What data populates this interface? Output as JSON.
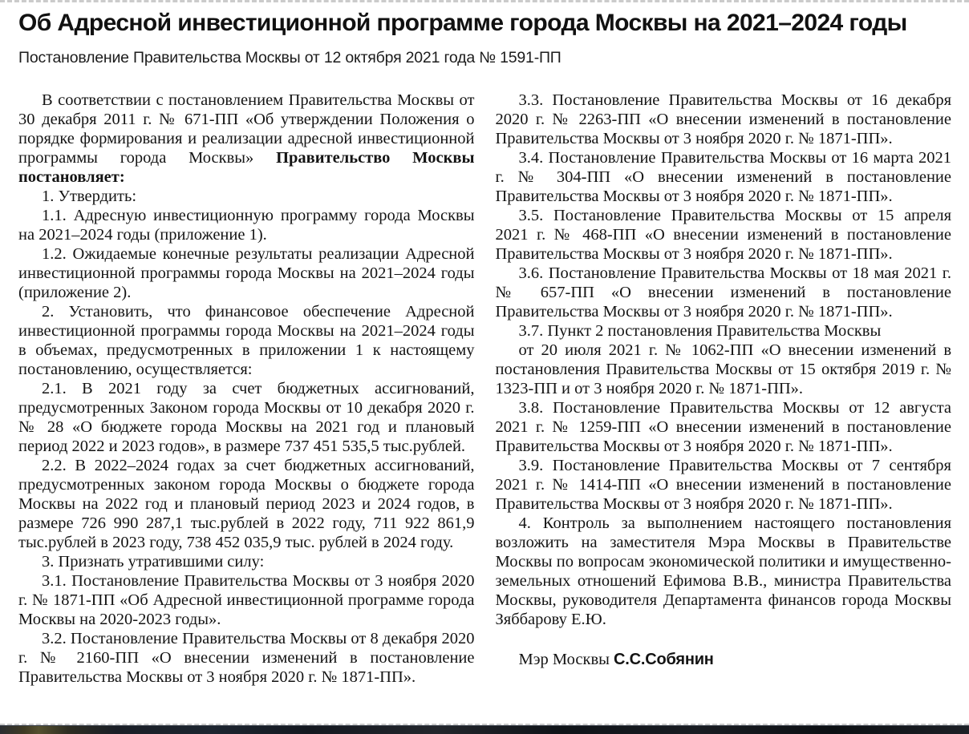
{
  "page": {
    "title": "Об Адресной инвестиционной программе города Москвы на 2021–2024 годы",
    "subtitle": "Постановление Правительства Москвы от 12 октября 2021 года № 1591-ПП"
  },
  "colors": {
    "text": "#141414",
    "title": "#111111",
    "border_dashed": "#cbcbcb",
    "strip_dark": "#14161a",
    "strip_olive": "#55502f",
    "strip_blue": "#1d2530"
  },
  "document": {
    "left_column": [
      {
        "segments": [
          {
            "text": "В соответствии с постановлением Правительства Москвы от 30 декабря 2011 г. № 671-ПП «Об утверждении Положения о порядке формирования и реализации адресной инвестиционной программы города Москвы» "
          },
          {
            "text": "Правительство Москвы постановляет:",
            "bold": true
          }
        ]
      },
      {
        "segments": [
          {
            "text": "1. Утвердить:"
          }
        ]
      },
      {
        "segments": [
          {
            "text": "1.1. Адресную инвестиционную программу города Москвы на 2021–2024 годы (приложение 1)."
          }
        ]
      },
      {
        "segments": [
          {
            "text": "1.2. Ожидаемые конечные результаты реализации Адресной инвестиционной программы города Москвы на 2021–2024 годы (приложение 2)."
          }
        ]
      },
      {
        "segments": [
          {
            "text": "2. Установить, что финансовое обеспечение Адресной инвестиционной программы города Москвы на 2021–2024 годы в объемах, предусмотренных в приложении 1 к настоящему постановлению, осуществляется:"
          }
        ]
      },
      {
        "segments": [
          {
            "text": "2.1. В 2021 году за счет бюджетных ассигнований, предусмотренных Законом города Москвы от 10 декабря 2020 г. № 28 «О бюджете города Москвы на 2021 год и плановый период 2022 и 2023 годов», в размере 737 451 535,5 тыс.рублей."
          }
        ]
      },
      {
        "segments": [
          {
            "text": "2.2. В 2022–2024 годах за счет бюджетных ассигнований, предусмотренных законом города Москвы о бюджете города Москвы на 2022 год и плановый период 2023 и 2024 годов, в размере 726 990 287,1 тыс.рублей в 2022 году, 711 922 861,9 тыс.рублей в 2023 году, 738 452 035,9 тыс. рублей в 2024 году."
          }
        ]
      },
      {
        "segments": [
          {
            "text": "3. Признать утратившими силу:"
          }
        ]
      },
      {
        "segments": [
          {
            "text": "3.1. Постановление Правительства Москвы от 3 ноября 2020 г. № 1871-ПП «Об Адресной инвестиционной программе города Москвы на 2020-2023 годы»."
          }
        ]
      },
      {
        "segments": [
          {
            "text": "3.2. Постановление Правительства Москвы от 8 декабря 2020 г. № 2160-ПП «О внесении изменений в постановление Правительства Москвы от 3 ноября 2020 г. № 1871-ПП»."
          }
        ]
      }
    ],
    "right_column": [
      {
        "segments": [
          {
            "text": "3.3. Постановление Правительства Москвы от 16 декабря 2020 г. № 2263-ПП «О внесении изменений в постановление Правительства Москвы от 3 ноября 2020 г. № 1871-ПП»."
          }
        ]
      },
      {
        "segments": [
          {
            "text": "3.4. Постановление Правительства Москвы от 16 марта 2021 г. № 304-ПП «О внесении изменений в постановление Правительства Москвы от 3 ноября 2020 г. № 1871-ПП»."
          }
        ]
      },
      {
        "segments": [
          {
            "text": "3.5. Постановление Правительства Москвы от 15 апреля 2021 г. № 468-ПП «О внесении изменений в постановление Правительства Москвы от 3 ноября 2020 г. № 1871-ПП»."
          }
        ]
      },
      {
        "segments": [
          {
            "text": "3.6. Постановление Правительства Москвы от 18 мая 2021 г. № 657-ПП «О внесении изменений в постановление Правительства Москвы от 3 ноября 2020 г. № 1871-ПП»."
          }
        ]
      },
      {
        "justify": false,
        "segments": [
          {
            "text": "3.7. Пункт 2 постановления Правительства Москвы"
          }
        ]
      },
      {
        "segments": [
          {
            "text": "от 20 июля 2021 г. № 1062-ПП «О внесении изменений в постановления Правительства Москвы от 15 октября 2019 г. № 1323-ПП и от 3 ноября 2020 г. № 1871-ПП»."
          }
        ]
      },
      {
        "segments": [
          {
            "text": "3.8. Постановление Правительства Москвы от 12 августа 2021 г. № 1259-ПП «О внесении изменений в постановление Правительства Москвы от 3 ноября 2020 г. № 1871-ПП»."
          }
        ]
      },
      {
        "segments": [
          {
            "text": "3.9. Постановление Правительства Москвы от 7 сентября 2021 г. № 1414-ПП «О внесении изменений в постановление Правительства Москвы от 3 ноября 2020 г. № 1871-ПП»."
          }
        ]
      },
      {
        "segments": [
          {
            "text": "4. Контроль за выполнением настоящего постановления возложить на заместителя Мэра Москвы в Правительстве Москвы по вопросам экономической политики и имущественно-земельных отношений Ефимова В.В., министра Правительства Москвы, руководителя Департамента финансов города Москвы Зяббарову Е.Ю."
          }
        ]
      }
    ],
    "signature": {
      "prefix": "Мэр Москвы ",
      "name": "С.С.Собянин"
    }
  }
}
